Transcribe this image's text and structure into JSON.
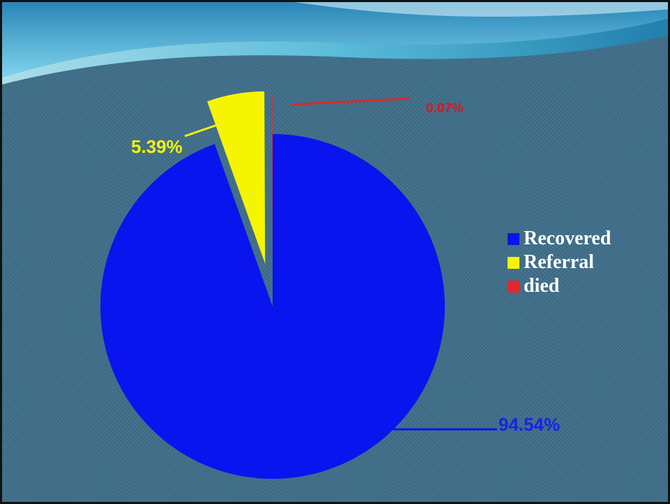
{
  "chart_data": {
    "type": "pie",
    "title": "",
    "exploded": true,
    "legend_position": "right",
    "slices": [
      {
        "name": "Recovered",
        "value": 94.54,
        "label": "94.54%",
        "color": "#0a14ee"
      },
      {
        "name": "Referral",
        "value": 5.39,
        "label": "5.39%",
        "color": "#f5f500"
      },
      {
        "name": "died",
        "value": 0.07,
        "label": "0.07%",
        "color": "#e8242b"
      }
    ]
  }
}
